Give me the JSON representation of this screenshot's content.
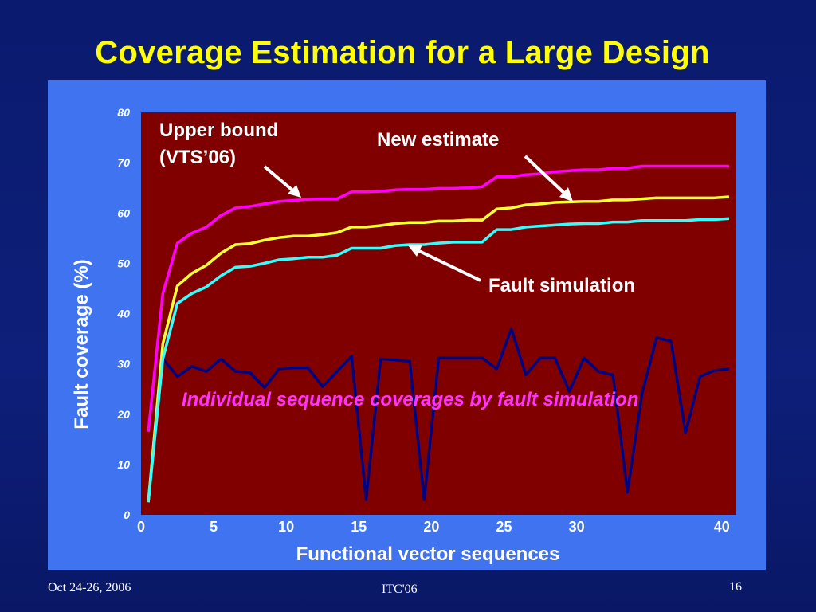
{
  "slide": {
    "title": "Coverage Estimation for a Large Design",
    "footer_date": "Oct 24-26, 2006",
    "footer_conference": "ITC'06",
    "footer_page": "16"
  },
  "colors": {
    "background": "#0d1f7a",
    "title": "#ffff00",
    "panel": "#3f73f0",
    "plot_area": "#800000",
    "upper_bound": "#ff00ff",
    "new_estimate": "#ffff33",
    "fault_simulation": "#33ffff",
    "individual": "#000080"
  },
  "chart_data": {
    "type": "line",
    "xlabel": "Functional vector sequences",
    "ylabel": "Fault coverage (%)",
    "xlim": [
      0,
      41
    ],
    "ylim": [
      0,
      80
    ],
    "x_ticks": [
      "0",
      "5",
      "10",
      "15",
      "20",
      "25",
      "30",
      "40"
    ],
    "x_tick_values": [
      0,
      5,
      10,
      15,
      20,
      25,
      30,
      40
    ],
    "y_ticks": [
      "0",
      "10",
      "20",
      "30",
      "40",
      "50",
      "60",
      "70",
      "80"
    ],
    "y_tick_values": [
      0,
      10,
      20,
      30,
      40,
      50,
      60,
      70,
      80
    ],
    "x": [
      0,
      0.67,
      1.33,
      2.0,
      2.67,
      3.33,
      4.0,
      4.67,
      5.33,
      6.0,
      6.67,
      7.33,
      8.0,
      8.67,
      9.33,
      10.0,
      10.67,
      11.33,
      12.0,
      12.67,
      13.33,
      14.0,
      14.67,
      15.33,
      16.0,
      16.67,
      17.33,
      18.0,
      18.67,
      19.33,
      20.0,
      20.67,
      21.33,
      22.0,
      22.67,
      23.33,
      24.0,
      24.67,
      25.33,
      26.0,
      26.67,
      27.33,
      28.0,
      28.67,
      29.33,
      30.0,
      30.67,
      31.33,
      32.0,
      32.67,
      33.33,
      34.0,
      34.67,
      35.33,
      36.0,
      36.67,
      37.33,
      38.0,
      38.67,
      39.33,
      40.0
    ],
    "series": [
      {
        "name": "Upper bound (VTS’06)",
        "color_key": "upper_bound",
        "x": [
          0.5,
          1.5,
          2.5,
          3.5,
          4.5,
          5.5,
          6.5,
          7.5,
          8.5,
          9.5,
          10.5,
          11.5,
          12.5,
          13.5,
          14.5,
          15.5,
          16.5,
          17.5,
          18.5,
          19.5,
          20.5,
          21.5,
          22.5,
          23.5,
          24.5,
          25.5,
          26.5,
          27.5,
          28.5,
          29.5,
          30.5,
          31.5,
          32.5,
          33.5,
          34.5,
          35.5,
          36.5,
          37.5,
          38.5,
          39.5,
          40.5
        ],
        "values": [
          16.5,
          44,
          54,
          56,
          57.2,
          59.5,
          61,
          61.3,
          61.8,
          62.3,
          62.5,
          62.7,
          62.8,
          62.8,
          64.2,
          64.2,
          64.3,
          64.6,
          64.7,
          64.7,
          64.9,
          64.9,
          65,
          65.2,
          67.2,
          67.2,
          67.6,
          67.8,
          68.2,
          68.4,
          68.6,
          68.6,
          68.9,
          68.9,
          69.3,
          69.3,
          69.3,
          69.3,
          69.3,
          69.3,
          69.3
        ]
      },
      {
        "name": "New estimate",
        "color_key": "new_estimate",
        "x": [
          0.5,
          1.5,
          2.5,
          3.5,
          4.5,
          5.5,
          6.5,
          7.5,
          8.5,
          9.5,
          10.5,
          11.5,
          12.5,
          13.5,
          14.5,
          15.5,
          16.5,
          17.5,
          18.5,
          19.5,
          20.5,
          21.5,
          22.5,
          23.5,
          24.5,
          25.5,
          26.5,
          27.5,
          28.5,
          29.5,
          30.5,
          31.5,
          32.5,
          33.5,
          34.5,
          35.5,
          36.5,
          37.5,
          38.5,
          39.5,
          40.5
        ],
        "values": [
          2.5,
          34,
          45.5,
          48,
          49.6,
          52,
          53.7,
          53.9,
          54.6,
          55.1,
          55.4,
          55.4,
          55.7,
          56.1,
          57.2,
          57.2,
          57.5,
          57.9,
          58.1,
          58.1,
          58.4,
          58.4,
          58.6,
          58.6,
          60.8,
          61,
          61.6,
          61.8,
          62.1,
          62.2,
          62.3,
          62.3,
          62.6,
          62.6,
          62.8,
          63,
          63,
          63,
          63,
          63,
          63.2
        ]
      },
      {
        "name": "Fault simulation",
        "color_key": "fault_simulation",
        "x": [
          0.5,
          1.5,
          2.5,
          3.5,
          4.5,
          5.5,
          6.5,
          7.5,
          8.5,
          9.5,
          10.5,
          11.5,
          12.5,
          13.5,
          14.5,
          15.5,
          16.5,
          17.5,
          18.5,
          19.5,
          20.5,
          21.5,
          22.5,
          23.5,
          24.5,
          25.5,
          26.5,
          27.5,
          28.5,
          29.5,
          30.5,
          31.5,
          32.5,
          33.5,
          34.5,
          35.5,
          36.5,
          37.5,
          38.5,
          39.5,
          40.5
        ],
        "values": [
          2.5,
          31,
          42,
          44,
          45.3,
          47.5,
          49.2,
          49.4,
          50,
          50.7,
          50.9,
          51.2,
          51.2,
          51.6,
          53,
          53,
          53,
          53.5,
          53.7,
          53.7,
          54,
          54.2,
          54.2,
          54.2,
          56.7,
          56.7,
          57.2,
          57.4,
          57.6,
          57.8,
          57.9,
          57.9,
          58.2,
          58.2,
          58.5,
          58.5,
          58.5,
          58.5,
          58.7,
          58.7,
          58.9
        ]
      },
      {
        "name": "Individual sequence coverages by fault simulation",
        "color_key": "individual",
        "x": [
          1.5,
          2.5,
          3.5,
          4.5,
          5.5,
          6.5,
          7.5,
          8.5,
          9.5,
          10.5,
          11.5,
          12.5,
          13.5,
          14.5,
          15.5,
          16.5,
          17.5,
          18.5,
          19.5,
          20.5,
          21.5,
          22.5,
          23.5,
          24.5,
          25.5,
          26.5,
          27.5,
          28.5,
          29.5,
          30.5,
          31.5,
          32.5,
          33.5,
          34.5,
          35.5,
          36.5,
          37.5,
          38.5,
          39.5,
          40.5
        ],
        "values": [
          31,
          27.5,
          29.5,
          28.5,
          31,
          28.5,
          28.3,
          25.3,
          29,
          29.2,
          29.2,
          25.5,
          28.5,
          31.5,
          3,
          31,
          30.8,
          30.5,
          3,
          31.2,
          31.2,
          31.2,
          31.2,
          29,
          37,
          27.8,
          31.2,
          31.2,
          24.5,
          31.2,
          28.5,
          27.8,
          4.5,
          24,
          35.2,
          34.5,
          16.3,
          27.5,
          28.7,
          29
        ]
      }
    ],
    "annotations": [
      {
        "line1": "Upper bound",
        "line2": "(VTS’06)"
      },
      {
        "text": "New estimate"
      },
      {
        "text": "Fault simulation"
      },
      {
        "text": "Individual sequence coverages by fault simulation"
      }
    ]
  }
}
